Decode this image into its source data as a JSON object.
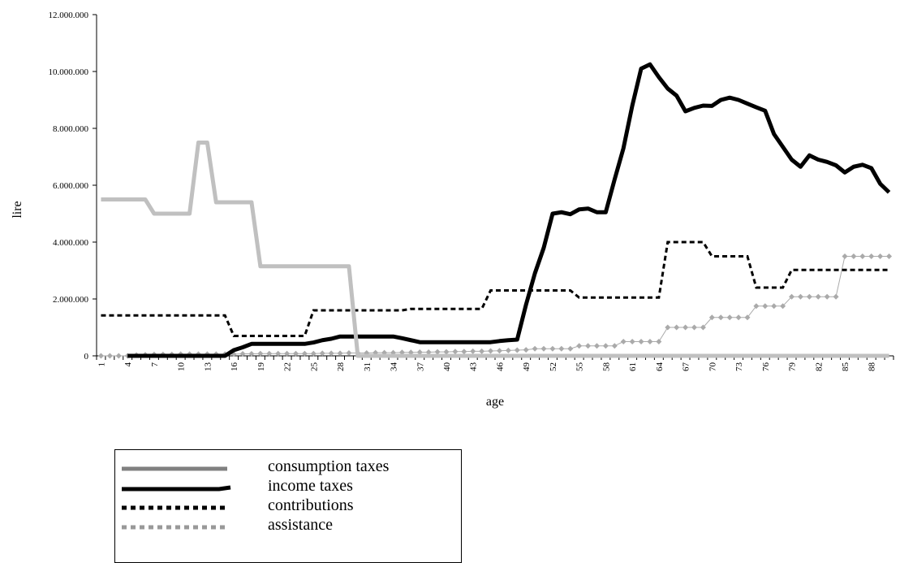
{
  "chart_data": {
    "type": "line",
    "title": "",
    "xlabel": "age",
    "ylabel": "lire",
    "ylim": [
      0,
      12000000
    ],
    "yticks": [
      0,
      2000000,
      4000000,
      6000000,
      8000000,
      10000000,
      12000000
    ],
    "ytick_labels": [
      "0",
      "2.000.000",
      "4.000.000",
      "6.000.000",
      "8.000.000",
      "10.000.000",
      "12.000.000"
    ],
    "x": [
      1,
      2,
      3,
      4,
      5,
      6,
      7,
      8,
      9,
      10,
      11,
      12,
      13,
      14,
      15,
      16,
      17,
      18,
      19,
      20,
      21,
      22,
      23,
      24,
      25,
      26,
      27,
      28,
      29,
      30,
      31,
      32,
      33,
      34,
      35,
      36,
      37,
      38,
      39,
      40,
      41,
      42,
      43,
      44,
      45,
      46,
      47,
      48,
      49,
      50,
      51,
      52,
      53,
      54,
      55,
      56,
      57,
      58,
      59,
      60,
      61,
      62,
      63,
      64,
      65,
      66,
      67,
      68,
      69,
      70,
      71,
      72,
      73,
      74,
      75,
      76,
      77,
      78,
      79,
      80,
      81,
      82,
      83,
      84,
      85,
      86,
      87,
      88,
      89,
      90
    ],
    "xtick_labels": [
      "1",
      "4",
      "7",
      "10",
      "13",
      "16",
      "19",
      "22",
      "25",
      "28",
      "31",
      "34",
      "37",
      "40",
      "43",
      "46",
      "49",
      "52",
      "55",
      "58",
      "61",
      "64",
      "67",
      "70",
      "73",
      "76",
      "79",
      "82",
      "85",
      "88"
    ],
    "grid": false,
    "legend_position": "below",
    "series": [
      {
        "name": "consumption taxes",
        "color": "#c0c0c0",
        "style": "solid-thick",
        "values": [
          5500000,
          5500000,
          5500000,
          5500000,
          5500000,
          5500000,
          5000000,
          5000000,
          5000000,
          5000000,
          5000000,
          7500000,
          7500000,
          5400000,
          5400000,
          5400000,
          5400000,
          5400000,
          3150000,
          3150000,
          3150000,
          3150000,
          3150000,
          3150000,
          3150000,
          3150000,
          3150000,
          3150000,
          3150000,
          0,
          0,
          0,
          0,
          0,
          0,
          0,
          0,
          0,
          0,
          0,
          0,
          0,
          0,
          0,
          0,
          0,
          0,
          0,
          0,
          0,
          0,
          0,
          0,
          0,
          0,
          0,
          0,
          0,
          0,
          0,
          0,
          0,
          0,
          0,
          0,
          0,
          0,
          0,
          0,
          0,
          0,
          0,
          0,
          0,
          0,
          0,
          0,
          0,
          0,
          0,
          0,
          0,
          0,
          0,
          0,
          0,
          0,
          0,
          0,
          0
        ]
      },
      {
        "name": "income taxes",
        "color": "#000000",
        "style": "solid-thick",
        "values": [
          null,
          null,
          null,
          0,
          0,
          0,
          0,
          0,
          0,
          0,
          0,
          0,
          0,
          0,
          0,
          200000,
          300000,
          420000,
          420000,
          420000,
          420000,
          420000,
          420000,
          420000,
          470000,
          550000,
          600000,
          680000,
          680000,
          680000,
          680000,
          680000,
          680000,
          680000,
          620000,
          550000,
          480000,
          480000,
          480000,
          480000,
          480000,
          480000,
          480000,
          480000,
          480000,
          520000,
          550000,
          570000,
          1800000,
          2900000,
          3800000,
          5000000,
          5050000,
          4980000,
          5150000,
          5180000,
          5050000,
          5050000,
          6200000,
          7300000,
          8800000,
          10100000,
          10250000,
          9800000,
          9400000,
          9150000,
          8600000,
          8720000,
          8800000,
          8790000,
          9000000,
          9080000,
          9000000,
          8870000,
          8740000,
          8620000,
          7800000,
          7350000,
          6900000,
          6650000,
          7050000,
          6900000,
          6820000,
          6700000,
          6450000,
          6650000,
          6720000,
          6600000,
          6050000,
          5750000
        ]
      },
      {
        "name": "contributions",
        "color": "#000000",
        "style": "dashed",
        "values": [
          1420000,
          1420000,
          1420000,
          1420000,
          1420000,
          1420000,
          1420000,
          1420000,
          1420000,
          1420000,
          1420000,
          1420000,
          1420000,
          1420000,
          1420000,
          700000,
          700000,
          700000,
          700000,
          700000,
          700000,
          700000,
          700000,
          700000,
          1600000,
          1600000,
          1600000,
          1600000,
          1600000,
          1600000,
          1600000,
          1600000,
          1600000,
          1600000,
          1600000,
          1650000,
          1650000,
          1650000,
          1650000,
          1650000,
          1650000,
          1650000,
          1650000,
          1650000,
          2300000,
          2300000,
          2300000,
          2300000,
          2300000,
          2300000,
          2300000,
          2300000,
          2300000,
          2300000,
          2050000,
          2050000,
          2050000,
          2050000,
          2050000,
          2050000,
          2050000,
          2050000,
          2050000,
          2050000,
          4000000,
          4000000,
          4000000,
          4000000,
          4000000,
          3500000,
          3500000,
          3500000,
          3500000,
          3500000,
          2400000,
          2400000,
          2400000,
          2400000,
          3020000,
          3020000,
          3020000,
          3020000,
          3020000,
          3020000,
          3020000,
          3020000,
          3020000,
          3020000,
          3020000,
          3020000
        ]
      },
      {
        "name": "assistance",
        "color": "#aaaaaa",
        "style": "thin-diamond",
        "values": [
          0,
          0,
          0,
          0,
          30000,
          40000,
          50000,
          50000,
          50000,
          60000,
          60000,
          60000,
          60000,
          60000,
          60000,
          60000,
          70000,
          70000,
          80000,
          80000,
          80000,
          80000,
          80000,
          80000,
          80000,
          90000,
          90000,
          90000,
          100000,
          100000,
          100000,
          110000,
          110000,
          110000,
          120000,
          120000,
          130000,
          130000,
          140000,
          140000,
          150000,
          150000,
          160000,
          160000,
          170000,
          180000,
          190000,
          200000,
          210000,
          250000,
          250000,
          250000,
          250000,
          250000,
          350000,
          350000,
          350000,
          350000,
          350000,
          500000,
          500000,
          500000,
          500000,
          500000,
          1000000,
          1000000,
          1000000,
          1000000,
          1000000,
          1350000,
          1350000,
          1350000,
          1350000,
          1350000,
          1750000,
          1750000,
          1750000,
          1750000,
          2080000,
          2080000,
          2080000,
          2080000,
          2080000,
          2080000,
          3500000,
          3500000,
          3500000,
          3500000,
          3500000,
          3500000
        ]
      }
    ]
  }
}
